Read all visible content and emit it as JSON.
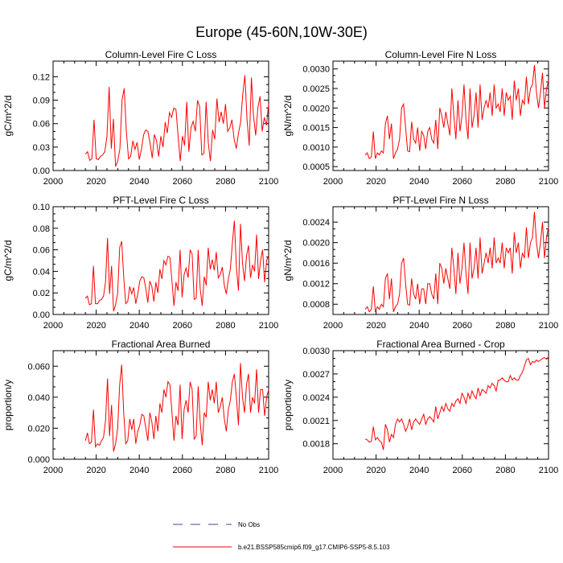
{
  "page_title": "Europe (45-60N,10W-30E)",
  "legend": {
    "entries": [
      {
        "label": "No Obs",
        "color": "#4b3f8f",
        "style": "dashed"
      },
      {
        "label": "b.e21.BSSP585cmip6.f09_g17.CMIP6-SSP5-8.5.103",
        "color": "#ff0000",
        "style": "solid"
      }
    ]
  },
  "colors": {
    "line": "#ff0000",
    "axis": "#000000",
    "obs": "#4b3f8f"
  },
  "chart_data": [
    {
      "type": "line",
      "title": "Column-Level Fire C Loss",
      "ylabel": "gC/m^2/d",
      "xlim": [
        2000,
        2100
      ],
      "ylim": [
        0,
        0.14
      ],
      "xticks": [
        "2000",
        "2020",
        "2040",
        "2060",
        "2080",
        "2100"
      ],
      "yticks": [
        "0.00",
        "0.03",
        "0.06",
        "0.09",
        "0.12"
      ],
      "x_start": 2015,
      "series": [
        {
          "name": "b.e21.BSSP585cmip6.f09_g17.CMIP6-SSP5-8.5.103",
          "values": [
            0.021,
            0.024,
            0.013,
            0.015,
            0.065,
            0.015,
            0.014,
            0.018,
            0.02,
            0.024,
            0.044,
            0.107,
            0.028,
            0.066,
            0.005,
            0.012,
            0.028,
            0.091,
            0.105,
            0.05,
            0.015,
            0.018,
            0.038,
            0.027,
            0.036,
            0.014,
            0.028,
            0.046,
            0.052,
            0.05,
            0.035,
            0.016,
            0.046,
            0.038,
            0.018,
            0.044,
            0.03,
            0.062,
            0.048,
            0.074,
            0.068,
            0.08,
            0.078,
            0.045,
            0.012,
            0.044,
            0.032,
            0.088,
            0.024,
            0.055,
            0.063,
            0.05,
            0.09,
            0.082,
            0.02,
            0.022,
            0.088,
            0.035,
            0.012,
            0.052,
            0.04,
            0.092,
            0.062,
            0.075,
            0.06,
            0.085,
            0.05,
            0.055,
            0.065,
            0.04,
            0.028,
            0.048,
            0.062,
            0.097,
            0.122,
            0.064,
            0.032,
            0.119,
            0.07,
            0.045,
            0.08,
            0.095,
            0.05,
            0.068,
            0.058,
            0.085
          ]
        }
      ]
    },
    {
      "type": "line",
      "title": "Column-Level Fire N Loss",
      "ylabel": "gN/m^2/d",
      "xlim": [
        2000,
        2100
      ],
      "ylim": [
        0.0004,
        0.0032
      ],
      "xticks": [
        "2000",
        "2020",
        "2040",
        "2060",
        "2080",
        "2100"
      ],
      "yticks": [
        "0.0005",
        "0.0010",
        "0.0015",
        "0.0020",
        "0.0025",
        "0.0030"
      ],
      "x_start": 2015,
      "series": [
        {
          "name": "b.e21.BSSP585cmip6.f09_g17.CMIP6-SSP5-8.5.103",
          "values": [
            0.0008,
            0.00085,
            0.0007,
            0.00075,
            0.0014,
            0.0007,
            0.00085,
            0.0008,
            0.0009,
            0.00085,
            0.0016,
            0.0018,
            0.0012,
            0.0016,
            0.0007,
            0.00085,
            0.00095,
            0.0012,
            0.002,
            0.0021,
            0.0015,
            0.0009,
            0.00088,
            0.00165,
            0.0012,
            0.0011,
            0.0015,
            0.0009,
            0.0014,
            0.0013,
            0.00095,
            0.0014,
            0.0015,
            0.0012,
            0.0011,
            0.0017,
            0.00095,
            0.002,
            0.0018,
            0.0015,
            0.0019,
            0.0016,
            0.0013,
            0.0025,
            0.0018,
            0.0012,
            0.0022,
            0.0014,
            0.0018,
            0.0026,
            0.0017,
            0.0012,
            0.0025,
            0.0015,
            0.0018,
            0.0024,
            0.0015,
            0.0026,
            0.0017,
            0.002,
            0.0022,
            0.002,
            0.0024,
            0.0018,
            0.0026,
            0.002,
            0.0021,
            0.0019,
            0.0025,
            0.0018,
            0.0024,
            0.0022,
            0.0023,
            0.0017,
            0.0027,
            0.0022,
            0.0025,
            0.0018,
            0.0022,
            0.0021,
            0.0028,
            0.0021,
            0.0025,
            0.0026,
            0.0031,
            0.0024,
            0.002,
            0.0024,
            0.0029,
            0.002,
            0.0025,
            0.0027
          ]
        }
      ]
    },
    {
      "type": "line",
      "title": "PFT-Level Fire C Loss",
      "ylabel": "gC/m^2/d",
      "xlim": [
        2000,
        2100
      ],
      "ylim": [
        0,
        0.1
      ],
      "xticks": [
        "2000",
        "2020",
        "2040",
        "2060",
        "2080",
        "2100"
      ],
      "yticks": [
        "0.00",
        "0.02",
        "0.04",
        "0.06",
        "0.08",
        "0.10"
      ],
      "x_start": 2015,
      "series": [
        {
          "name": "b.e21.BSSP585cmip6.f09_g17.CMIP6-SSP5-8.5.103",
          "values": [
            0.015,
            0.017,
            0.009,
            0.01,
            0.045,
            0.01,
            0.01,
            0.013,
            0.014,
            0.017,
            0.03,
            0.071,
            0.019,
            0.045,
            0.003,
            0.009,
            0.02,
            0.062,
            0.068,
            0.035,
            0.01,
            0.012,
            0.026,
            0.019,
            0.025,
            0.01,
            0.019,
            0.031,
            0.035,
            0.034,
            0.024,
            0.011,
            0.031,
            0.026,
            0.012,
            0.03,
            0.02,
            0.042,
            0.033,
            0.05,
            0.046,
            0.054,
            0.053,
            0.031,
            0.008,
            0.03,
            0.022,
            0.06,
            0.016,
            0.037,
            0.043,
            0.034,
            0.06,
            0.056,
            0.014,
            0.015,
            0.06,
            0.024,
            0.008,
            0.035,
            0.027,
            0.062,
            0.042,
            0.051,
            0.041,
            0.058,
            0.034,
            0.037,
            0.044,
            0.027,
            0.019,
            0.033,
            0.042,
            0.066,
            0.087,
            0.044,
            0.022,
            0.084,
            0.048,
            0.031,
            0.054,
            0.064,
            0.034,
            0.046,
            0.04,
            0.074,
            0.033,
            0.05,
            0.06,
            0.03,
            0.05,
            0.055
          ]
        }
      ]
    },
    {
      "type": "line",
      "title": "PFT-Level Fire N Loss",
      "ylabel": "gN/m^2/d",
      "xlim": [
        2000,
        2100
      ],
      "ylim": [
        0.0006,
        0.0027
      ],
      "xticks": [
        "2000",
        "2020",
        "2040",
        "2060",
        "2080",
        "2100"
      ],
      "yticks": [
        "0.0008",
        "0.0012",
        "0.0016",
        "0.0020",
        "0.0024"
      ],
      "x_start": 2015,
      "series": [
        {
          "name": "b.e21.BSSP585cmip6.f09_g17.CMIP6-SSP5-8.5.103",
          "values": [
            0.0007,
            0.00075,
            0.00065,
            0.0007,
            0.00115,
            0.00065,
            0.00075,
            0.0007,
            0.0008,
            0.00075,
            0.0013,
            0.0014,
            0.0009,
            0.0013,
            0.00065,
            0.00075,
            0.0008,
            0.001,
            0.0016,
            0.0017,
            0.0012,
            0.0008,
            0.00078,
            0.0013,
            0.001,
            0.0009,
            0.0012,
            0.0008,
            0.0011,
            0.0011,
            0.0008,
            0.0012,
            0.0012,
            0.001,
            0.0009,
            0.0014,
            0.0008,
            0.0016,
            0.0015,
            0.0012,
            0.0015,
            0.0013,
            0.0011,
            0.0019,
            0.0015,
            0.001,
            0.0018,
            0.0012,
            0.0015,
            0.002,
            0.0014,
            0.001,
            0.002,
            0.0013,
            0.0015,
            0.0019,
            0.0013,
            0.0021,
            0.0014,
            0.0016,
            0.0018,
            0.0016,
            0.0019,
            0.0015,
            0.0021,
            0.0016,
            0.0017,
            0.0016,
            0.002,
            0.0015,
            0.0019,
            0.0018,
            0.0019,
            0.0014,
            0.0022,
            0.0018,
            0.002,
            0.0015,
            0.0018,
            0.0017,
            0.0023,
            0.0017,
            0.002,
            0.0021,
            0.0026,
            0.002,
            0.0017,
            0.002,
            0.0024,
            0.0017,
            0.0021,
            0.0023
          ]
        }
      ]
    },
    {
      "type": "line",
      "title": "Fractional Area Burned",
      "ylabel": "proportion/y",
      "xlim": [
        2000,
        2100
      ],
      "ylim": [
        0,
        0.07
      ],
      "xticks": [
        "2000",
        "2020",
        "2040",
        "2060",
        "2080",
        "2100"
      ],
      "yticks": [
        "0.000",
        "0.020",
        "0.040",
        "0.060"
      ],
      "x_start": 2015,
      "series": [
        {
          "name": "b.e21.BSSP585cmip6.f09_g17.CMIP6-SSP5-8.5.103",
          "values": [
            0.012,
            0.017,
            0.01,
            0.011,
            0.032,
            0.008,
            0.01,
            0.009,
            0.012,
            0.014,
            0.025,
            0.052,
            0.015,
            0.035,
            0.005,
            0.01,
            0.02,
            0.048,
            0.061,
            0.03,
            0.01,
            0.012,
            0.026,
            0.019,
            0.026,
            0.01,
            0.018,
            0.022,
            0.029,
            0.028,
            0.02,
            0.012,
            0.03,
            0.024,
            0.013,
            0.028,
            0.018,
            0.036,
            0.03,
            0.045,
            0.04,
            0.05,
            0.048,
            0.03,
            0.012,
            0.028,
            0.022,
            0.048,
            0.013,
            0.032,
            0.038,
            0.03,
            0.05,
            0.045,
            0.013,
            0.015,
            0.047,
            0.024,
            0.009,
            0.03,
            0.027,
            0.05,
            0.038,
            0.045,
            0.036,
            0.05,
            0.03,
            0.034,
            0.04,
            0.026,
            0.018,
            0.032,
            0.038,
            0.05,
            0.055,
            0.04,
            0.022,
            0.062,
            0.04,
            0.03,
            0.048,
            0.055,
            0.03,
            0.04,
            0.036,
            0.058,
            0.03,
            0.045,
            0.045,
            0.028,
            0.04,
            0.045
          ]
        }
      ]
    },
    {
      "type": "line",
      "title": "Fractional Area Burned - Crop",
      "ylabel": "proportion/y",
      "xlim": [
        2000,
        2100
      ],
      "ylim": [
        0.0016,
        0.003
      ],
      "xticks": [
        "2000",
        "2020",
        "2040",
        "2060",
        "2080",
        "2100"
      ],
      "yticks": [
        "0.0018",
        "0.0021",
        "0.0024",
        "0.0027",
        "0.0030"
      ],
      "x_start": 2015,
      "series": [
        {
          "name": "b.e21.BSSP585cmip6.f09_g17.CMIP6-SSP5-8.5.103",
          "values": [
            0.00186,
            0.00185,
            0.00182,
            0.00183,
            0.00202,
            0.00185,
            0.00188,
            0.00184,
            0.00182,
            0.00172,
            0.00205,
            0.00198,
            0.00182,
            0.00192,
            0.00188,
            0.00205,
            0.00212,
            0.00208,
            0.00212,
            0.00205,
            0.00196,
            0.00202,
            0.00212,
            0.00198,
            0.00208,
            0.00212,
            0.00208,
            0.00205,
            0.00212,
            0.00218,
            0.00205,
            0.00212,
            0.00215,
            0.00212,
            0.00208,
            0.00228,
            0.00212,
            0.0022,
            0.00228,
            0.00222,
            0.00232,
            0.00225,
            0.00222,
            0.00232,
            0.00228,
            0.00235,
            0.00238,
            0.00232,
            0.00245,
            0.0024,
            0.00232,
            0.00245,
            0.00238,
            0.00248,
            0.00242,
            0.00238,
            0.00252,
            0.00242,
            0.0025,
            0.00248,
            0.00245,
            0.00255,
            0.00252,
            0.00258,
            0.00255,
            0.00248,
            0.00262,
            0.00262,
            0.00265,
            0.00262,
            0.0026,
            0.0026,
            0.00268,
            0.00262,
            0.00265,
            0.00262,
            0.00262,
            0.00268,
            0.00272,
            0.0028,
            0.00288,
            0.0029,
            0.00282,
            0.00286,
            0.00285,
            0.00288,
            0.00286,
            0.00288,
            0.0029,
            0.00291,
            0.00289,
            0.00292
          ]
        }
      ]
    }
  ]
}
